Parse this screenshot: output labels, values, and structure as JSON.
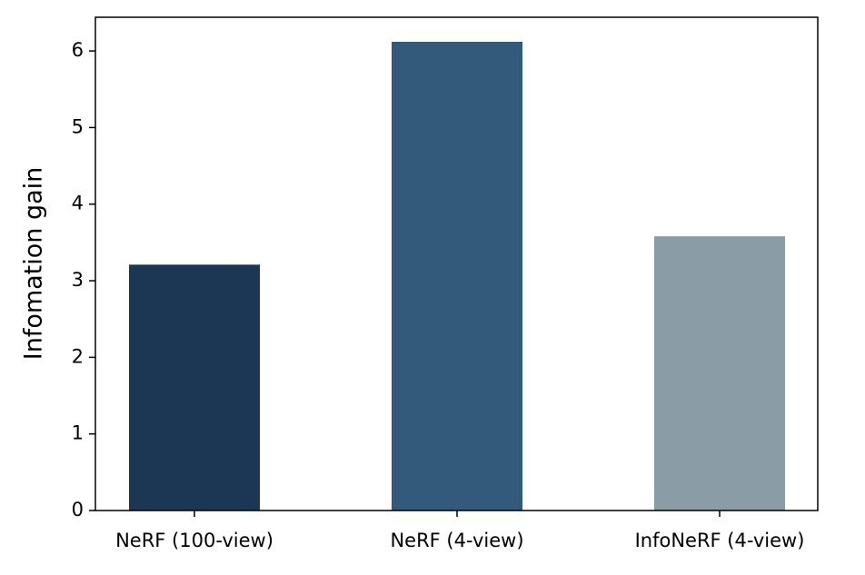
{
  "chart_data": {
    "type": "bar",
    "ylabel": "Infomation gain",
    "categories": [
      "NeRF (100-view)",
      "NeRF (4-view)",
      "InfoNeRF (4-view)"
    ],
    "values": [
      3.21,
      6.12,
      3.58
    ],
    "colors": [
      "#1c3754",
      "#345a7b",
      "#8a9ca6"
    ],
    "ylim": [
      0,
      6.44
    ],
    "yticks": [
      0,
      1,
      2,
      3,
      4,
      5,
      6
    ],
    "grid": false
  }
}
